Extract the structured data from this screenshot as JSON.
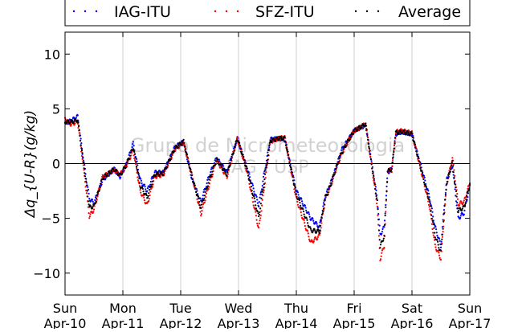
{
  "chart_data": {
    "type": "scatter",
    "title": "",
    "xlabel": "",
    "ylabel": "Δq_{U-R}(g/kg)",
    "ylim": [
      -12,
      12
    ],
    "yticks": [
      -10,
      -5,
      0,
      5,
      10
    ],
    "xlim": [
      0,
      7
    ],
    "xtick_days": [
      "Sun",
      "Mon",
      "Tue",
      "Wed",
      "Thu",
      "Fri",
      "Sat",
      "Sun"
    ],
    "xtick_dates": [
      "Apr-10",
      "Apr-11",
      "Apr-12",
      "Apr-13",
      "Apr-14",
      "Apr-15",
      "Apr-16",
      "Apr-17"
    ],
    "grid": {
      "vertical": true,
      "horizontal": false
    },
    "zero_line": true,
    "legend_position": "top",
    "watermark": [
      "Grupo de Micrometeorologia",
      "IAG / USP"
    ],
    "series": [
      {
        "name": "IAG-ITU",
        "color": "#0000ff",
        "x": [
          0.0,
          0.1,
          0.22,
          0.3,
          0.42,
          0.5,
          0.65,
          0.85,
          0.95,
          1.05,
          1.18,
          1.3,
          1.42,
          1.55,
          1.7,
          1.9,
          2.05,
          2.2,
          2.35,
          2.5,
          2.62,
          2.8,
          2.98,
          3.15,
          3.35,
          3.55,
          3.7,
          3.8,
          4.0,
          4.25,
          4.4,
          4.5,
          4.58,
          4.68,
          4.78,
          4.9,
          5.0,
          5.2,
          5.4,
          5.45,
          5.52,
          5.58,
          5.65,
          5.72,
          5.82,
          6.0,
          6.3,
          6.4,
          6.5,
          6.6,
          6.7,
          6.8,
          6.9,
          7.0
        ],
        "y": [
          3.7,
          3.9,
          4.3,
          1.0,
          -3.2,
          -3.6,
          -1.5,
          -0.5,
          -1.2,
          -0.2,
          1.8,
          -1.5,
          -2.5,
          -0.8,
          -0.8,
          1.5,
          2.0,
          -1.5,
          -3.5,
          -1.0,
          0.5,
          -0.8,
          2.3,
          -0.5,
          -3.8,
          2.2,
          2.3,
          2.2,
          -2.5,
          -5.0,
          -5.8,
          -3.0,
          -2.0,
          -0.5,
          1.2,
          2.2,
          3.0,
          3.5,
          -3.2,
          -6.5,
          -5.8,
          -0.8,
          -0.5,
          2.7,
          2.9,
          2.7,
          -3.0,
          -5.8,
          -7.5,
          -1.5,
          -0.2,
          -5.0,
          -4.5,
          -2.0
        ]
      },
      {
        "name": "SFZ-ITU",
        "color": "#ff0000",
        "x": [
          0.0,
          0.1,
          0.22,
          0.3,
          0.42,
          0.5,
          0.65,
          0.85,
          0.95,
          1.05,
          1.18,
          1.3,
          1.42,
          1.55,
          1.7,
          1.9,
          2.05,
          2.2,
          2.35,
          2.5,
          2.62,
          2.8,
          2.98,
          3.15,
          3.35,
          3.55,
          3.7,
          3.8,
          4.0,
          4.25,
          4.4,
          4.5,
          4.58,
          4.68,
          4.78,
          4.9,
          5.0,
          5.2,
          5.4,
          5.45,
          5.52,
          5.58,
          5.65,
          5.72,
          5.82,
          6.0,
          6.3,
          6.4,
          6.5,
          6.6,
          6.7,
          6.8,
          6.9,
          7.0
        ],
        "y": [
          4.0,
          3.6,
          3.8,
          0.5,
          -4.8,
          -4.2,
          -1.2,
          -0.6,
          -1.0,
          -0.3,
          1.2,
          -2.5,
          -3.8,
          -1.2,
          -1.0,
          1.3,
          1.9,
          -1.2,
          -4.6,
          -1.8,
          0.3,
          -1.2,
          2.3,
          -0.8,
          -6.0,
          2.0,
          2.3,
          2.4,
          -3.2,
          -7.2,
          -6.6,
          -3.3,
          -2.3,
          -0.6,
          0.8,
          2.1,
          3.0,
          3.6,
          -3.8,
          -8.7,
          -7.5,
          -0.6,
          -0.6,
          2.9,
          3.0,
          2.8,
          -3.8,
          -7.5,
          -8.7,
          -1.9,
          0.5,
          -3.7,
          -3.5,
          -1.8
        ]
      },
      {
        "name": "Average",
        "color": "#000000",
        "x": [
          0.0,
          0.1,
          0.22,
          0.3,
          0.42,
          0.5,
          0.65,
          0.85,
          0.95,
          1.05,
          1.18,
          1.3,
          1.42,
          1.55,
          1.7,
          1.9,
          2.05,
          2.2,
          2.35,
          2.5,
          2.62,
          2.8,
          2.98,
          3.15,
          3.35,
          3.55,
          3.7,
          3.8,
          4.0,
          4.25,
          4.4,
          4.5,
          4.58,
          4.68,
          4.78,
          4.9,
          5.0,
          5.2,
          5.4,
          5.45,
          5.52,
          5.58,
          5.65,
          5.72,
          5.82,
          6.0,
          6.3,
          6.4,
          6.5,
          6.6,
          6.7,
          6.8,
          6.9,
          7.0
        ],
        "y": [
          3.8,
          3.8,
          4.0,
          0.8,
          -4.0,
          -3.9,
          -1.3,
          -0.5,
          -1.1,
          -0.2,
          1.5,
          -2.0,
          -3.1,
          -1.0,
          -0.9,
          1.4,
          2.0,
          -1.3,
          -4.0,
          -1.4,
          0.4,
          -1.0,
          2.3,
          -0.6,
          -4.9,
          2.1,
          2.3,
          2.3,
          -2.8,
          -6.1,
          -6.2,
          -3.1,
          -2.1,
          -0.5,
          1.0,
          2.1,
          3.0,
          3.6,
          -3.5,
          -7.6,
          -6.6,
          -0.7,
          -0.5,
          2.8,
          2.9,
          2.7,
          -3.4,
          -6.6,
          -8.1,
          -1.7,
          0.1,
          -4.3,
          -4.0,
          -1.9
        ]
      }
    ]
  }
}
